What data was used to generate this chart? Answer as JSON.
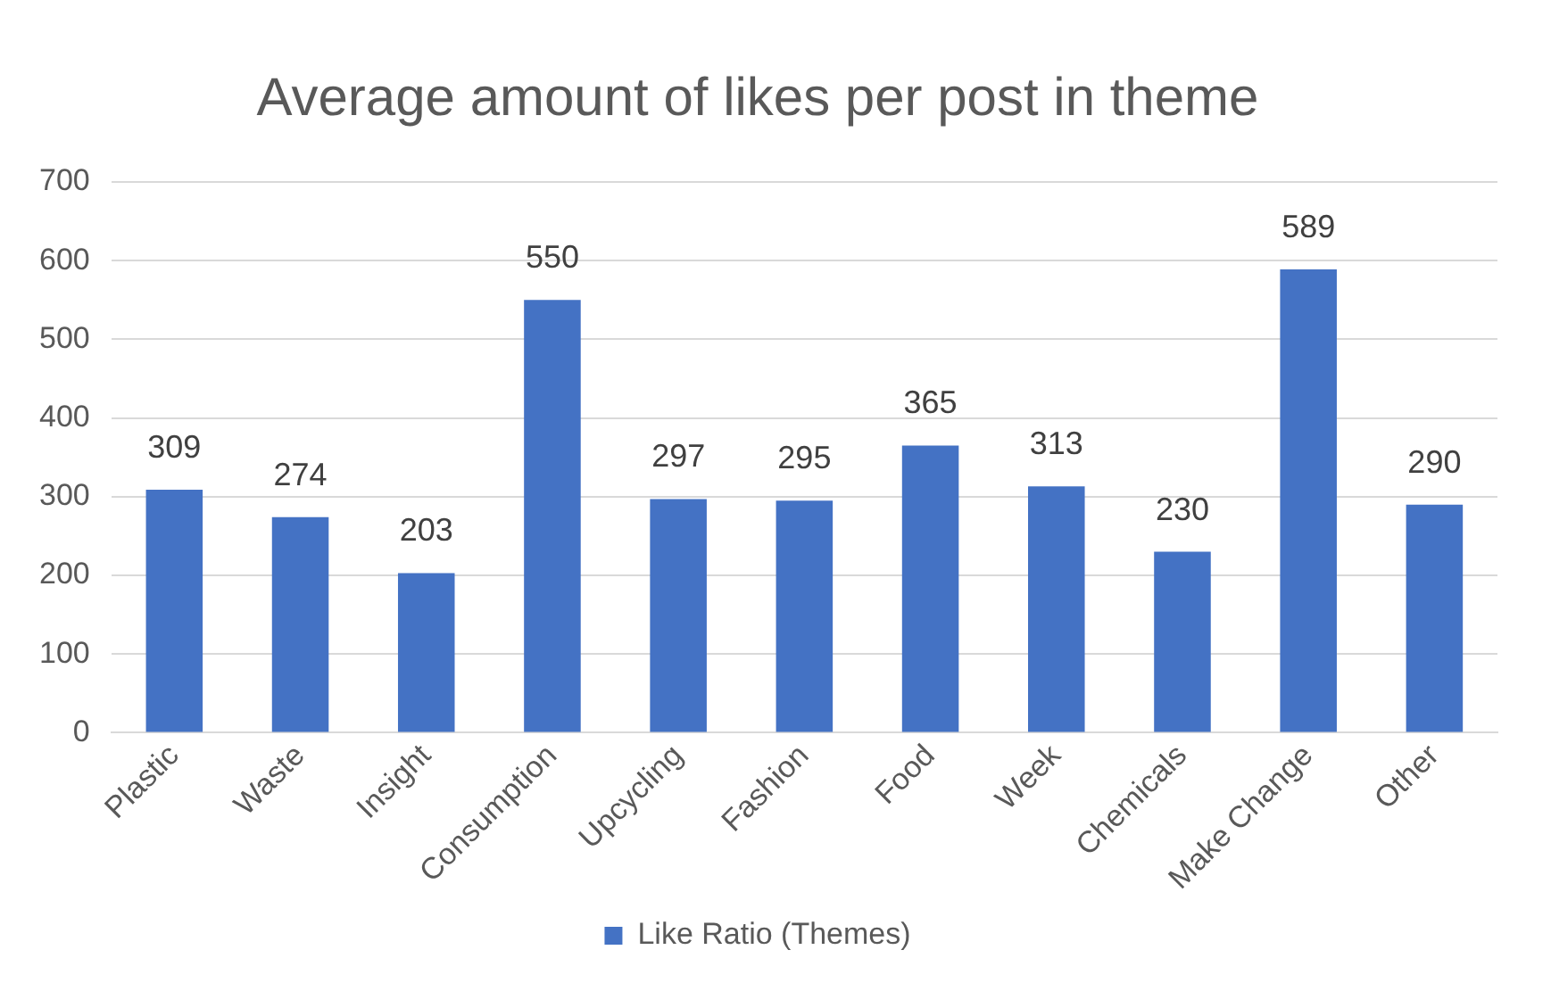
{
  "chart_data": {
    "type": "bar",
    "title": "Average amount of likes per post in theme",
    "categories": [
      "Plastic",
      "Waste",
      "Insight",
      "Consumption",
      "Upcycling",
      "Fashion",
      "Food",
      "Week",
      "Chemicals",
      "Make Change",
      "Other"
    ],
    "series": [
      {
        "name": "Like Ratio (Themes)",
        "color": "#4472c4",
        "values": [
          309,
          274,
          203,
          550,
          297,
          295,
          365,
          313,
          230,
          589,
          290
        ]
      }
    ],
    "ylim": [
      0,
      700
    ],
    "yticks": [
      0,
      100,
      200,
      300,
      400,
      500,
      600,
      700
    ],
    "grid": "y",
    "legend": "bottom",
    "data_labels": true
  }
}
